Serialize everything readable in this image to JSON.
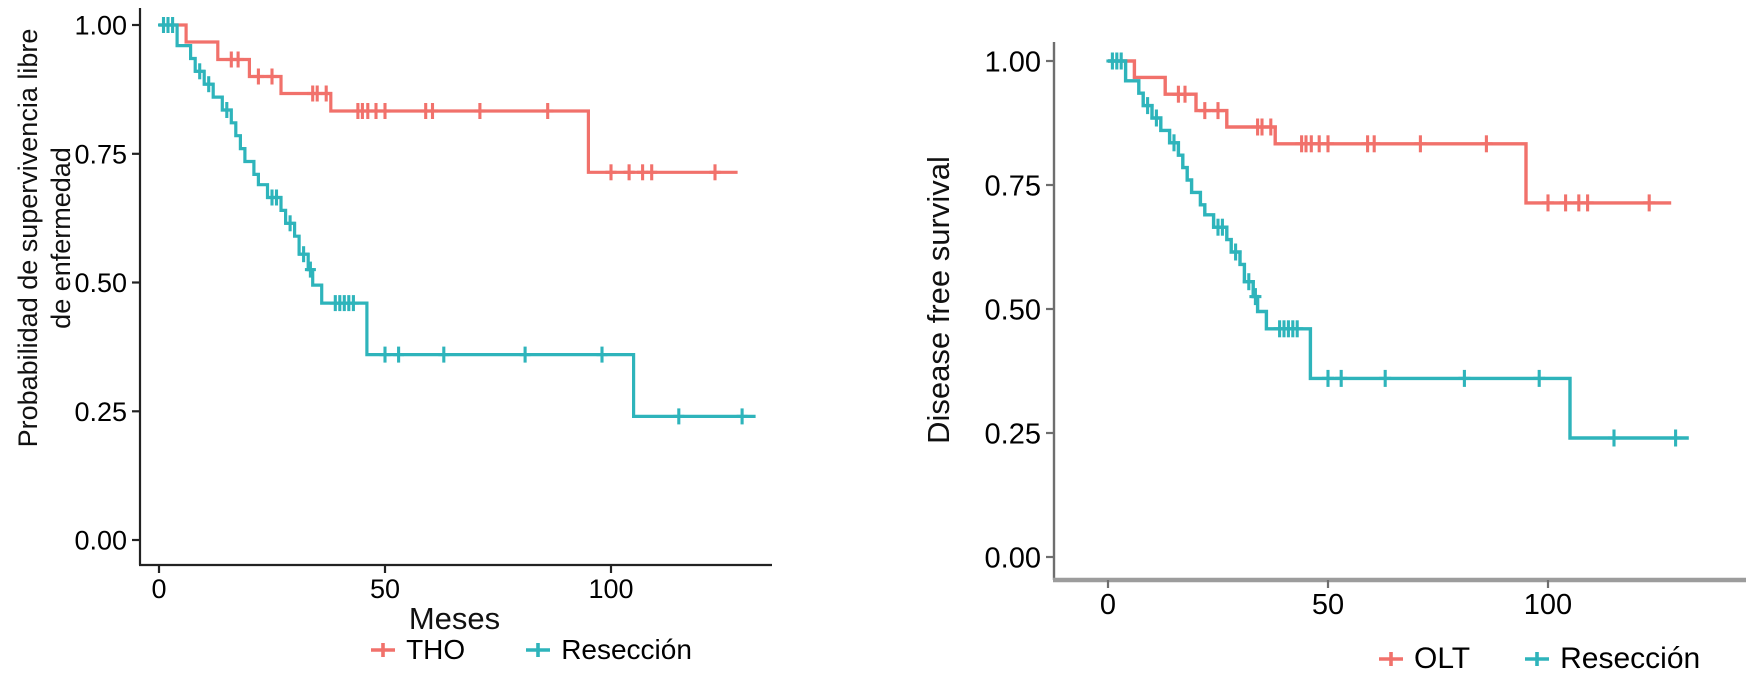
{
  "figure": {
    "background": "#ffffff",
    "left_axis_color": "#222222",
    "right_x_axis_color": "#9c9c9c",
    "right_y_axis_color": "#6e6e6e",
    "text_color": "#000000",
    "censor_marker": "plus"
  },
  "chart_data": [
    {
      "type": "line",
      "subtype": "kaplan-meier-step",
      "panel": "left",
      "title": "",
      "xlabel": "Meses",
      "ylabel_lines": [
        "Probabilidad de supervivencia libre",
        "de enfermedad"
      ],
      "xlim": [
        0,
        135
      ],
      "ylim": [
        0,
        1.0
      ],
      "grid": false,
      "legend_position": "bottom",
      "x_ticks": [
        0,
        50,
        100
      ],
      "x_tick_labels": [
        "0",
        "50",
        "100"
      ],
      "y_ticks": [
        1.0,
        0.75,
        0.5,
        0.25,
        0.0
      ],
      "y_tick_labels": [
        "1.00",
        "0.75",
        "0.50",
        "0.25",
        "0.00"
      ],
      "series": [
        {
          "name": "THO",
          "color": "#F1716B",
          "steps": [
            [
              0,
              1.0
            ],
            [
              6,
              0.967
            ],
            [
              13,
              0.933
            ],
            [
              20,
              0.9
            ],
            [
              27,
              0.867
            ],
            [
              38,
              0.833
            ],
            [
              95,
              0.714
            ],
            [
              128,
              0.714
            ]
          ],
          "censors": [
            [
              16,
              0.933
            ],
            [
              17.5,
              0.933
            ],
            [
              22,
              0.9
            ],
            [
              25,
              0.9
            ],
            [
              34,
              0.867
            ],
            [
              35,
              0.867
            ],
            [
              37,
              0.867
            ],
            [
              44,
              0.833
            ],
            [
              45,
              0.833
            ],
            [
              46.2,
              0.833
            ],
            [
              48,
              0.833
            ],
            [
              50,
              0.833
            ],
            [
              59,
              0.833
            ],
            [
              60.5,
              0.833
            ],
            [
              71,
              0.833
            ],
            [
              86,
              0.833
            ],
            [
              100,
              0.714
            ],
            [
              104,
              0.714
            ],
            [
              107,
              0.714
            ],
            [
              109,
              0.714
            ],
            [
              123,
              0.714
            ]
          ]
        },
        {
          "name": "Resección",
          "color": "#2EB4BB",
          "steps": [
            [
              0,
              1.0
            ],
            [
              4,
              0.96
            ],
            [
              7,
              0.935
            ],
            [
              8,
              0.91
            ],
            [
              10,
              0.885
            ],
            [
              12,
              0.86
            ],
            [
              14,
              0.835
            ],
            [
              16,
              0.81
            ],
            [
              17,
              0.785
            ],
            [
              18,
              0.76
            ],
            [
              19,
              0.735
            ],
            [
              21,
              0.71
            ],
            [
              22,
              0.69
            ],
            [
              24,
              0.665
            ],
            [
              27,
              0.64
            ],
            [
              28,
              0.615
            ],
            [
              30,
              0.59
            ],
            [
              31,
              0.555
            ],
            [
              33,
              0.525
            ],
            [
              34,
              0.495
            ],
            [
              36,
              0.46
            ],
            [
              46,
              0.36
            ],
            [
              105,
              0.24
            ],
            [
              132,
              0.24
            ]
          ],
          "censors": [
            [
              1,
              1.0
            ],
            [
              2,
              1.0
            ],
            [
              3,
              1.0
            ],
            [
              9,
              0.91
            ],
            [
              11,
              0.885
            ],
            [
              15,
              0.835
            ],
            [
              25,
              0.665
            ],
            [
              26,
              0.665
            ],
            [
              29,
              0.615
            ],
            [
              32,
              0.555
            ],
            [
              33.5,
              0.525
            ],
            [
              39,
              0.46
            ],
            [
              40,
              0.46
            ],
            [
              41,
              0.46
            ],
            [
              42,
              0.46
            ],
            [
              43,
              0.46
            ],
            [
              50,
              0.36
            ],
            [
              53,
              0.36
            ],
            [
              63,
              0.36
            ],
            [
              81,
              0.36
            ],
            [
              98,
              0.36
            ],
            [
              115,
              0.24
            ],
            [
              129,
              0.24
            ]
          ]
        }
      ]
    },
    {
      "type": "line",
      "subtype": "kaplan-meier-step",
      "panel": "right",
      "title": "",
      "xlabel": "",
      "ylabel_lines": [
        "Disease free survival"
      ],
      "xlim": [
        0,
        145
      ],
      "ylim": [
        0,
        1.0
      ],
      "grid": false,
      "legend_position": "bottom-right",
      "x_ticks": [
        0,
        50,
        100
      ],
      "x_tick_labels": [
        "0",
        "50",
        "100"
      ],
      "y_ticks": [
        1.0,
        0.75,
        0.5,
        0.25,
        0.0
      ],
      "y_tick_labels": [
        "1.00",
        "0.75",
        "0.50",
        "0.25",
        "0.00"
      ],
      "series": [
        {
          "name": "OLT",
          "color": "#F1716B",
          "steps": [
            [
              0,
              1.0
            ],
            [
              6,
              0.967
            ],
            [
              13,
              0.933
            ],
            [
              20,
              0.9
            ],
            [
              27,
              0.867
            ],
            [
              38,
              0.833
            ],
            [
              95,
              0.714
            ],
            [
              128,
              0.714
            ]
          ],
          "censors": [
            [
              16,
              0.933
            ],
            [
              17.5,
              0.933
            ],
            [
              22,
              0.9
            ],
            [
              25,
              0.9
            ],
            [
              34,
              0.867
            ],
            [
              35,
              0.867
            ],
            [
              37,
              0.867
            ],
            [
              44,
              0.833
            ],
            [
              45,
              0.833
            ],
            [
              46.2,
              0.833
            ],
            [
              48,
              0.833
            ],
            [
              50,
              0.833
            ],
            [
              59,
              0.833
            ],
            [
              60.5,
              0.833
            ],
            [
              71,
              0.833
            ],
            [
              86,
              0.833
            ],
            [
              100,
              0.714
            ],
            [
              104,
              0.714
            ],
            [
              107,
              0.714
            ],
            [
              109,
              0.714
            ],
            [
              123,
              0.714
            ]
          ]
        },
        {
          "name": "Resección",
          "color": "#2EB4BB",
          "steps": [
            [
              0,
              1.0
            ],
            [
              4,
              0.96
            ],
            [
              7,
              0.935
            ],
            [
              8,
              0.91
            ],
            [
              10,
              0.885
            ],
            [
              12,
              0.86
            ],
            [
              14,
              0.835
            ],
            [
              16,
              0.81
            ],
            [
              17,
              0.785
            ],
            [
              18,
              0.76
            ],
            [
              19,
              0.735
            ],
            [
              21,
              0.71
            ],
            [
              22,
              0.69
            ],
            [
              24,
              0.665
            ],
            [
              27,
              0.64
            ],
            [
              28,
              0.615
            ],
            [
              30,
              0.59
            ],
            [
              31,
              0.555
            ],
            [
              33,
              0.525
            ],
            [
              34,
              0.495
            ],
            [
              36,
              0.46
            ],
            [
              46,
              0.36
            ],
            [
              105,
              0.24
            ],
            [
              132,
              0.24
            ]
          ],
          "censors": [
            [
              1,
              1.0
            ],
            [
              2,
              1.0
            ],
            [
              3,
              1.0
            ],
            [
              9,
              0.91
            ],
            [
              11,
              0.885
            ],
            [
              15,
              0.835
            ],
            [
              25,
              0.665
            ],
            [
              26,
              0.665
            ],
            [
              29,
              0.615
            ],
            [
              32,
              0.555
            ],
            [
              33.5,
              0.525
            ],
            [
              39,
              0.46
            ],
            [
              40,
              0.46
            ],
            [
              41,
              0.46
            ],
            [
              42,
              0.46
            ],
            [
              43,
              0.46
            ],
            [
              50,
              0.36
            ],
            [
              53,
              0.36
            ],
            [
              63,
              0.36
            ],
            [
              81,
              0.36
            ],
            [
              98,
              0.36
            ],
            [
              115,
              0.24
            ],
            [
              129,
              0.24
            ]
          ]
        }
      ]
    }
  ]
}
